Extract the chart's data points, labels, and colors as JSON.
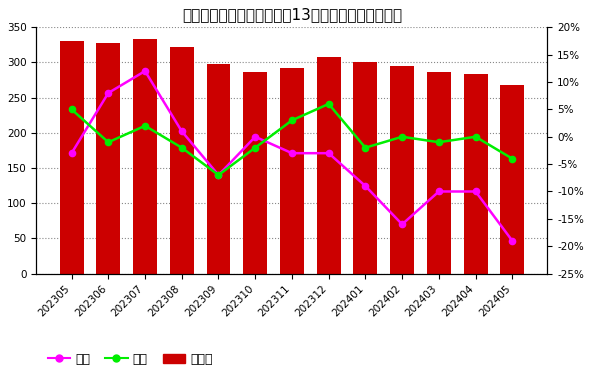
{
  "title": "中国氧化铝全部生产商过去13个月进口铝土矿库存率",
  "categories": [
    "202305",
    "202306",
    "202307",
    "202308",
    "202309",
    "202310",
    "202311",
    "202312",
    "202401",
    "202402",
    "202403",
    "202404",
    "202405"
  ],
  "bar_values": [
    330,
    327,
    333,
    322,
    298,
    287,
    292,
    308,
    300,
    295,
    286,
    283,
    268
  ],
  "yoy_pct": [
    -3,
    8,
    12,
    1,
    -7,
    0,
    -3,
    -3,
    -9,
    -16,
    -10,
    -10,
    -19
  ],
  "mom_pct": [
    5,
    -1,
    2,
    -2,
    -7,
    -2,
    3,
    6,
    -2,
    0,
    -1,
    0,
    -4
  ],
  "bar_color": "#cc0000",
  "yoy_color": "#ff00ff",
  "mom_color": "#00ee00",
  "background_color": "#ffffff",
  "grid_color": "#888888",
  "left_ylim": [
    0,
    350
  ],
  "left_yticks": [
    0,
    50,
    100,
    150,
    200,
    250,
    300,
    350
  ],
  "right_ylim": [
    -25,
    20
  ],
  "right_yticks": [
    -25,
    -20,
    -15,
    -10,
    -5,
    0,
    5,
    10,
    15,
    20
  ],
  "legend_labels": [
    "同比",
    "环比",
    "库存率"
  ],
  "title_fontsize": 11,
  "tick_fontsize": 7.5,
  "legend_fontsize": 9
}
